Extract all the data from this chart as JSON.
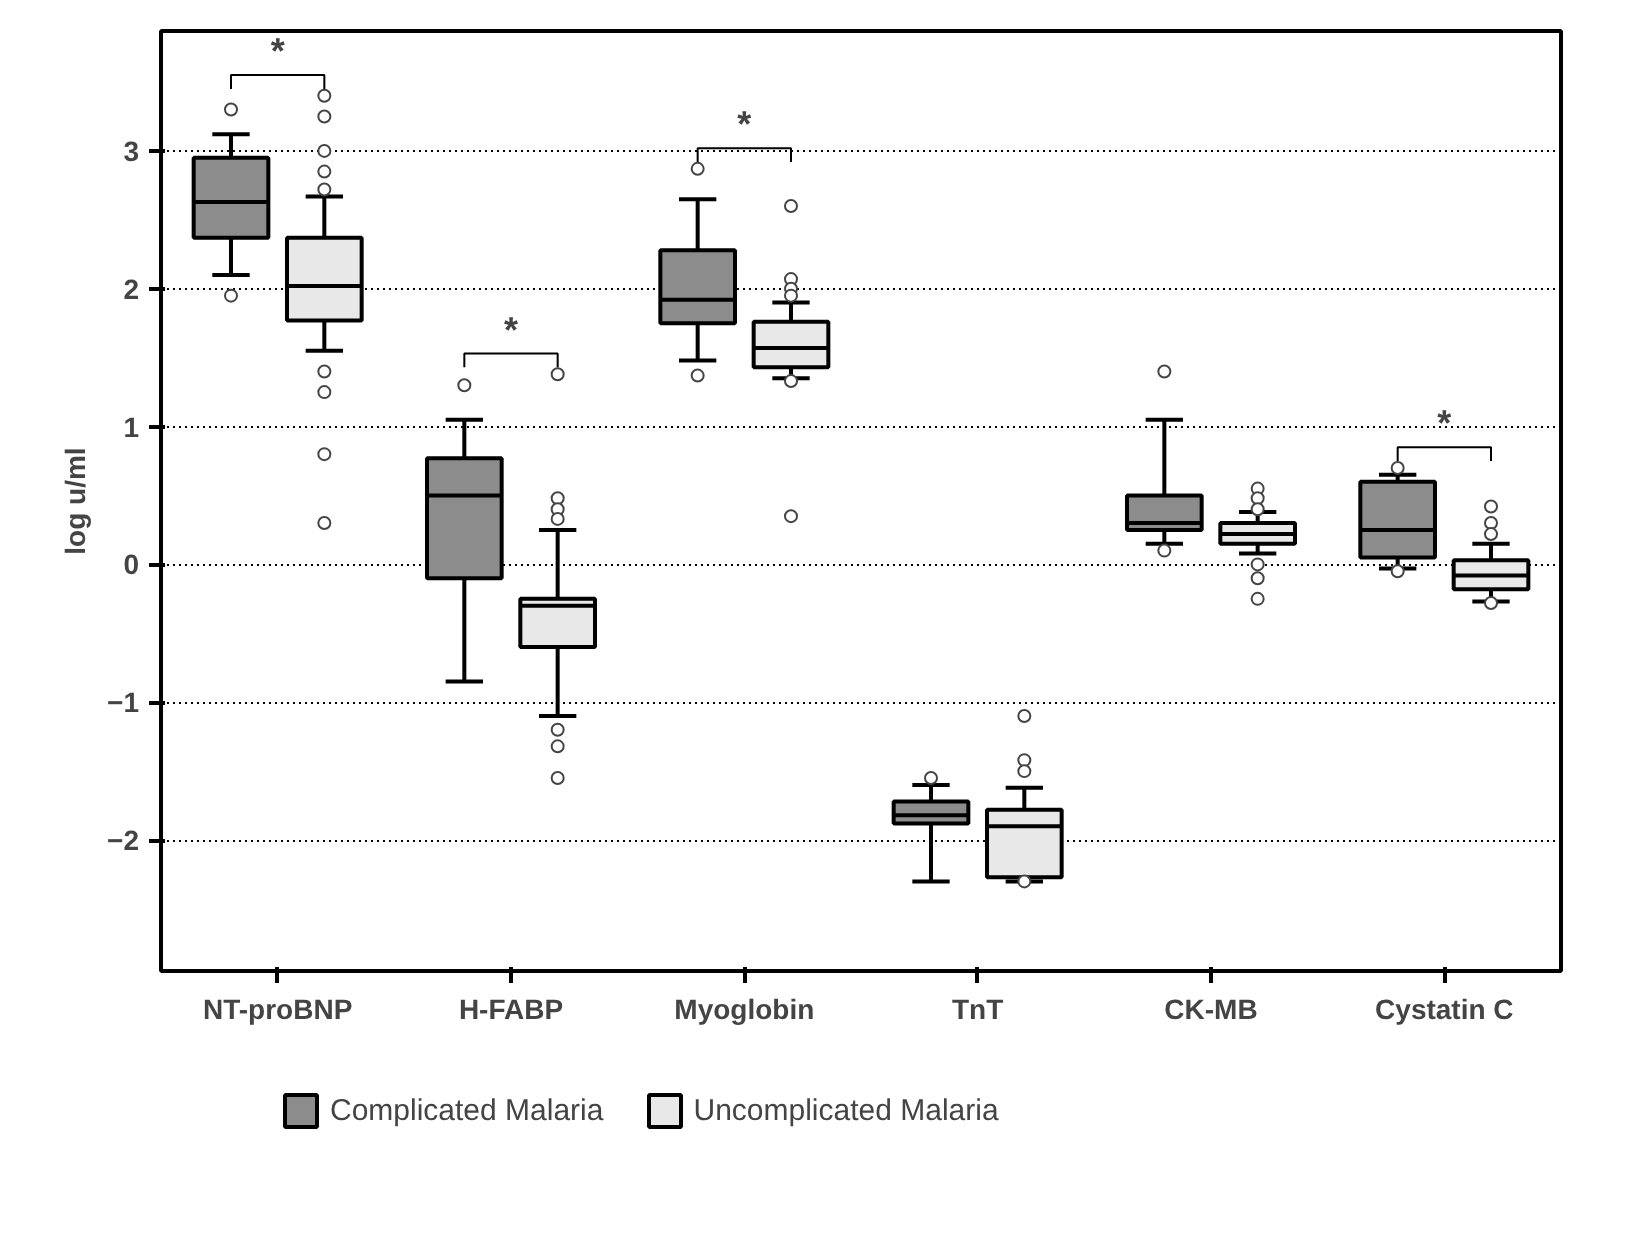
{
  "chart_data": {
    "type": "box",
    "ylabel": "log u/ml",
    "categories": [
      "NT-proBNP",
      "H-FABP",
      "Myoglobin",
      "TnT",
      "CK-MB",
      "Cystatin C"
    ],
    "ylim": [
      -2.95,
      3.87
    ],
    "yticks": [
      -2,
      -1,
      0,
      1,
      2,
      3
    ],
    "grid": "y",
    "legend": "bottom",
    "series": [
      {
        "name": "Complicated Malaria",
        "color": "#8c8c8c",
        "boxes": [
          {
            "low": 2.1,
            "q1": 2.37,
            "median": 2.63,
            "q3": 2.95,
            "high": 3.12,
            "outliers": [
              3.3,
              1.95
            ]
          },
          {
            "low": -0.85,
            "q1": -0.1,
            "median": 0.5,
            "q3": 0.77,
            "high": 1.05,
            "outliers": [
              1.3
            ]
          },
          {
            "low": 1.48,
            "q1": 1.75,
            "median": 1.92,
            "q3": 2.28,
            "high": 2.65,
            "outliers": [
              2.87,
              1.37
            ]
          },
          {
            "low": -2.3,
            "q1": -1.88,
            "median": -1.82,
            "q3": -1.72,
            "high": -1.6,
            "outliers": [
              -1.55
            ]
          },
          {
            "low": 0.15,
            "q1": 0.25,
            "median": 0.3,
            "q3": 0.5,
            "high": 1.05,
            "outliers": [
              1.4,
              0.1
            ]
          },
          {
            "low": -0.03,
            "q1": 0.05,
            "median": 0.25,
            "q3": 0.6,
            "high": 0.65,
            "outliers": [
              0.7,
              -0.05
            ]
          }
        ]
      },
      {
        "name": "Uncomplicated Malaria",
        "color": "#e8e8e8",
        "boxes": [
          {
            "low": 1.55,
            "q1": 1.77,
            "median": 2.02,
            "q3": 2.37,
            "high": 2.67,
            "outliers": [
              3.4,
              3.25,
              3.0,
              2.85,
              2.72,
              1.4,
              1.25,
              0.8,
              0.3
            ]
          },
          {
            "low": -1.1,
            "q1": -0.6,
            "median": -0.3,
            "q3": -0.25,
            "high": 0.25,
            "outliers": [
              1.38,
              0.48,
              0.4,
              0.33,
              -1.2,
              -1.32,
              -1.55
            ]
          },
          {
            "low": 1.35,
            "q1": 1.43,
            "median": 1.57,
            "q3": 1.76,
            "high": 1.9,
            "outliers": [
              2.6,
              2.07,
              2.0,
              1.95,
              1.33,
              0.35
            ]
          },
          {
            "low": -2.3,
            "q1": -2.27,
            "median": -1.9,
            "q3": -1.78,
            "high": -1.62,
            "outliers": [
              -1.1,
              -1.42,
              -1.5,
              -2.3
            ]
          },
          {
            "low": 0.08,
            "q1": 0.15,
            "median": 0.22,
            "q3": 0.3,
            "high": 0.38,
            "outliers": [
              0.55,
              0.48,
              0.4,
              0.0,
              -0.1,
              -0.25
            ]
          },
          {
            "low": -0.27,
            "q1": -0.18,
            "median": -0.08,
            "q3": 0.03,
            "high": 0.15,
            "outliers": [
              0.42,
              0.3,
              0.22,
              -0.28
            ]
          }
        ]
      }
    ],
    "annotations": [
      "*",
      "*",
      "*",
      "*"
    ]
  }
}
